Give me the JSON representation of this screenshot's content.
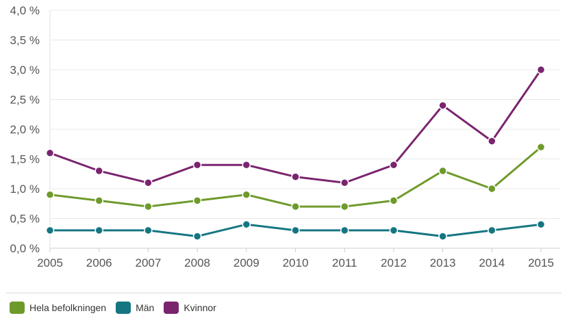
{
  "chart_data": {
    "type": "line",
    "x": [
      "2005",
      "2006",
      "2007",
      "2008",
      "2009",
      "2010",
      "2011",
      "2012",
      "2013",
      "2014",
      "2015"
    ],
    "ylim": [
      0,
      4
    ],
    "yticks": [
      0,
      0.5,
      1.0,
      1.5,
      2.0,
      2.5,
      3.0,
      3.5,
      4.0
    ],
    "ytick_labels": [
      "0,0 %",
      "0,5 %",
      "1,0 %",
      "1,5 %",
      "2,0 %",
      "2,5 %",
      "3,0 %",
      "3,5 %",
      "4,0 %"
    ],
    "grid": true,
    "legend_position": "bottom-left",
    "series": [
      {
        "name": "Hela befolkningen",
        "color": "#6e9a2b",
        "values": [
          0.9,
          0.8,
          0.7,
          0.8,
          0.9,
          0.7,
          0.7,
          0.8,
          1.3,
          1.0,
          1.7
        ]
      },
      {
        "name": "Män",
        "color": "#157682",
        "values": [
          0.3,
          0.3,
          0.3,
          0.2,
          0.4,
          0.3,
          0.3,
          0.3,
          0.2,
          0.3,
          0.4
        ]
      },
      {
        "name": "Kvinnor",
        "color": "#7a246f",
        "values": [
          1.6,
          1.3,
          1.1,
          1.4,
          1.4,
          1.2,
          1.1,
          1.4,
          2.4,
          1.8,
          3.0
        ]
      }
    ]
  }
}
